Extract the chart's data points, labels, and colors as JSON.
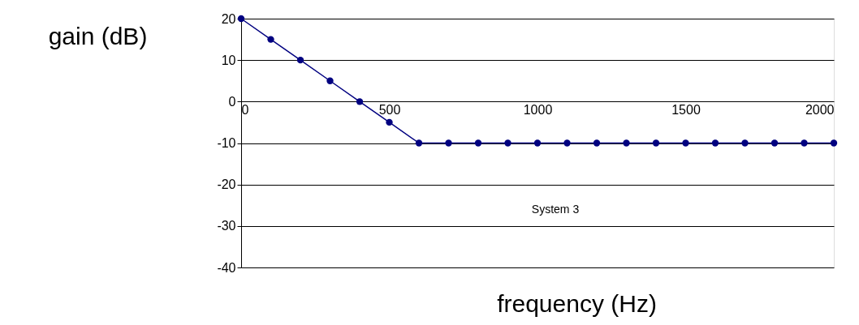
{
  "chart_data": {
    "type": "line",
    "xlabel": "frequency (Hz)",
    "ylabel": "gain (dB)",
    "x": [
      0,
      100,
      200,
      300,
      400,
      500,
      600,
      700,
      800,
      900,
      1000,
      1100,
      1200,
      1300,
      1400,
      1500,
      1600,
      1700,
      1800,
      1900,
      2000
    ],
    "series": [
      {
        "color": "#000080",
        "values": [
          20,
          15,
          10,
          5,
          0,
          -5,
          -10,
          -10,
          -10,
          -10,
          -10,
          -10,
          -10,
          -10,
          -10,
          -10,
          -10,
          -10,
          -10,
          -10,
          -10
        ]
      }
    ],
    "xlim": [
      0,
      2000
    ],
    "xticks": [
      0,
      500,
      1000,
      1500,
      2000
    ],
    "ylim": [
      -40,
      20
    ],
    "yticks": [
      -40,
      -30,
      -20,
      -10,
      0,
      10,
      20
    ],
    "annotations": [
      "System 3"
    ],
    "grid": "y",
    "marker": "circle",
    "line_style": "solid"
  }
}
